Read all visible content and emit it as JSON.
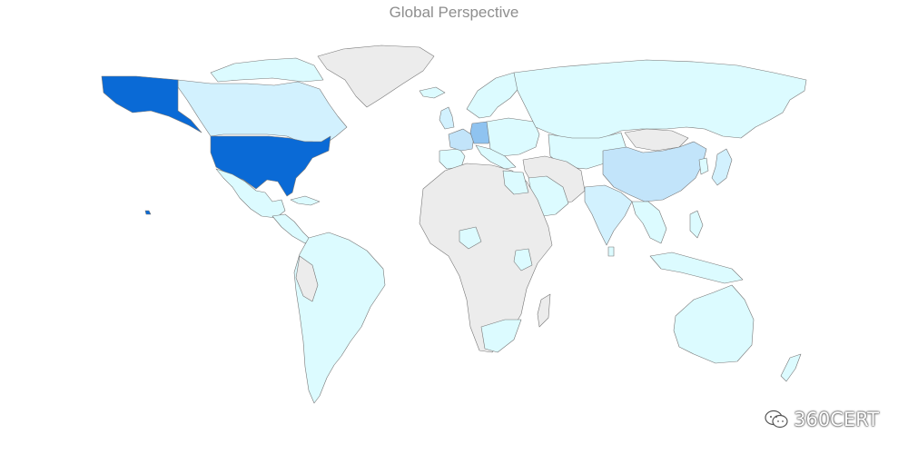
{
  "title": "Global Perspective",
  "watermark": "360CERT",
  "colors": {
    "no_data": "#ececec",
    "low": "#dcfbff",
    "medium_low": "#d2f1fe",
    "medium": "#c2e4fa",
    "medium_high": "#8fc3f0",
    "high": "#0a6ad6",
    "border": "#777777"
  },
  "map_levels": {
    "united-states": 1.0,
    "germany": 0.3,
    "france": 0.22,
    "china": 0.18,
    "canada": 0.08,
    "russia": 0.06,
    "brazil": 0.06,
    "australia": 0.06,
    "india": 0.08,
    "mexico": 0.06,
    "argentina": 0.05,
    "saudi-arabia": 0.06,
    "south-africa": 0.06,
    "united-kingdom": 0.1,
    "japan": 0.08
  }
}
